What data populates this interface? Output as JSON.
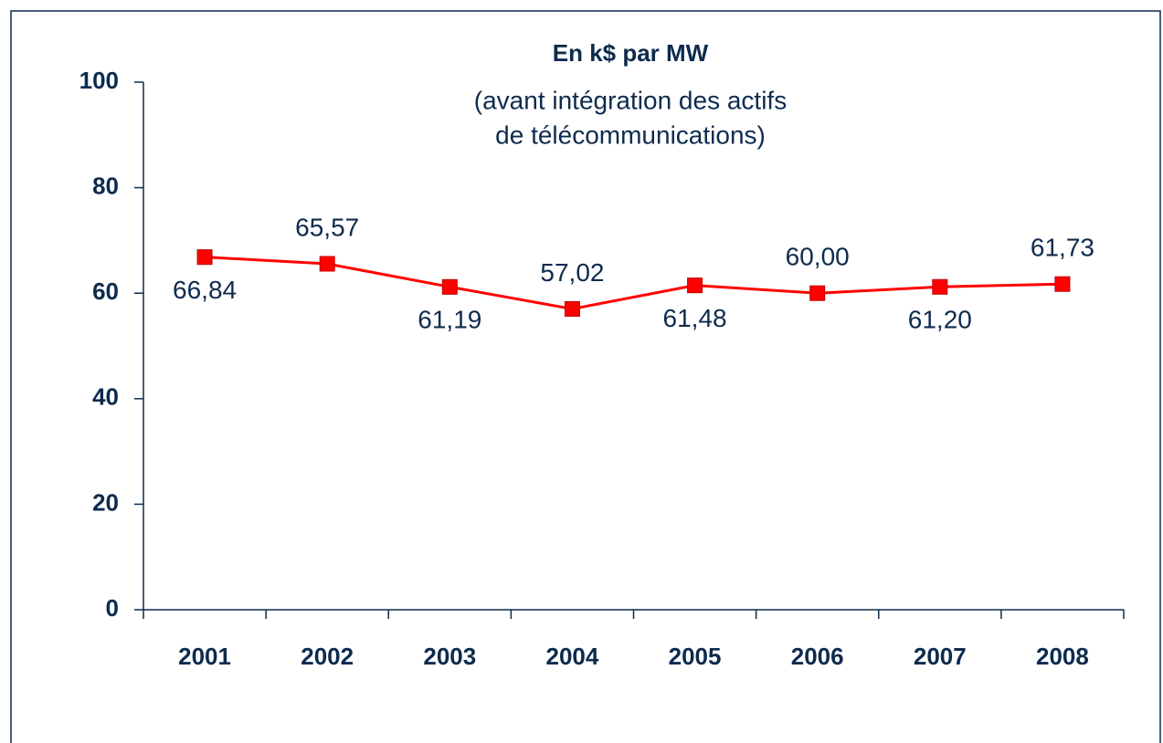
{
  "chart_data": {
    "type": "line",
    "title": "En k$ par MW",
    "subtitle": [
      "(avant intégration des actifs",
      "de télécommunications)"
    ],
    "categories": [
      "2001",
      "2002",
      "2003",
      "2004",
      "2005",
      "2006",
      "2007",
      "2008"
    ],
    "series": [
      {
        "name": null,
        "color": "#ff0000",
        "values": [
          66.84,
          65.57,
          61.19,
          57.02,
          61.48,
          60.0,
          61.2,
          61.73
        ],
        "value_labels": [
          "66,84",
          "65,57",
          "61,19",
          "57,02",
          "61,48",
          "60,00",
          "61,20",
          "61,73"
        ]
      }
    ],
    "ylim": [
      0,
      100
    ],
    "yticks": [
      0,
      20,
      40,
      60,
      80,
      100
    ],
    "grid": false,
    "legend": false
  }
}
